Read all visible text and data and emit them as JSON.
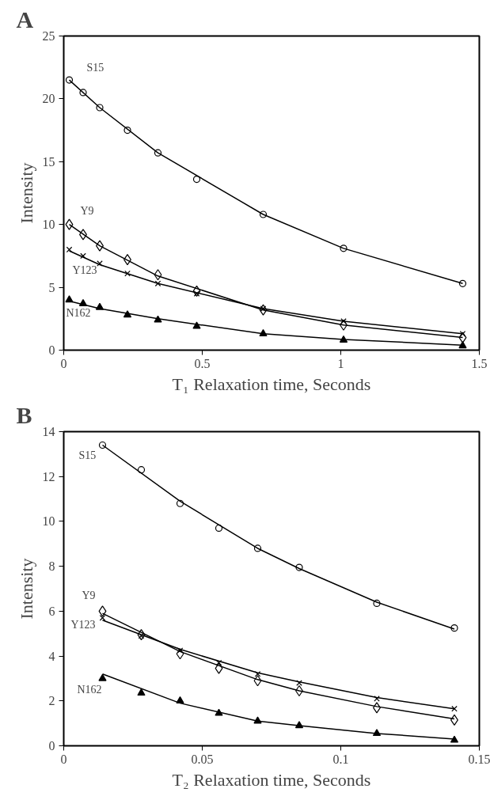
{
  "chart_data": [
    {
      "type": "scatter",
      "title": "A",
      "xlabel": "T₁ Relaxation time, Seconds",
      "ylabel": "Intensity",
      "xlim": [
        0,
        1.5
      ],
      "ylim": [
        0,
        25
      ],
      "xticks": [
        0,
        0.5,
        1,
        1.5
      ],
      "yticks": [
        0,
        5,
        10,
        15,
        20,
        25
      ],
      "grid": false,
      "x": [
        0.02,
        0.07,
        0.13,
        0.23,
        0.34,
        0.48,
        0.72,
        1.01,
        1.44
      ],
      "series": [
        {
          "name": "S15",
          "color": "#000000",
          "marker": "circle",
          "values": [
            21.5,
            20.5,
            19.3,
            17.5,
            15.7,
            13.6,
            10.8,
            8.1,
            5.3
          ]
        },
        {
          "name": "Y9",
          "color": "#000000",
          "marker": "diamond",
          "values": [
            10.0,
            9.2,
            8.3,
            7.2,
            6.0,
            4.7,
            3.2,
            2.0,
            1.0
          ]
        },
        {
          "name": "Y123",
          "color": "#000000",
          "marker": "cross",
          "values": [
            8.0,
            7.5,
            6.9,
            6.1,
            5.3,
            4.5,
            3.3,
            2.3,
            1.3
          ]
        },
        {
          "name": "N162",
          "color": "#000000",
          "marker": "triangle",
          "values": [
            4.0,
            3.7,
            3.4,
            2.8,
            2.4,
            1.9,
            1.3,
            0.8,
            0.35
          ]
        },
        {
          "type": "line",
          "color": "#000000",
          "x": [
            0.02,
            0.13,
            0.34,
            0.72,
            1.01,
            1.44
          ],
          "values": [
            21.5,
            19.3,
            15.7,
            10.8,
            8.1,
            5.3
          ]
        },
        {
          "type": "line",
          "color": "#000000",
          "x": [
            0.02,
            0.13,
            0.34,
            0.72,
            1.01,
            1.44
          ],
          "values": [
            10.0,
            8.3,
            5.9,
            3.2,
            2.0,
            1.0
          ]
        },
        {
          "type": "line",
          "color": "#000000",
          "x": [
            0.02,
            0.13,
            0.34,
            0.72,
            1.01,
            1.44
          ],
          "values": [
            7.9,
            6.8,
            5.3,
            3.3,
            2.3,
            1.3
          ]
        },
        {
          "type": "line",
          "color": "#000000",
          "x": [
            0.02,
            0.13,
            0.34,
            0.72,
            1.01,
            1.44
          ],
          "values": [
            3.9,
            3.3,
            2.5,
            1.3,
            0.85,
            0.4
          ]
        }
      ]
    },
    {
      "type": "scatter",
      "title": "B",
      "xlabel": "T₂ Relaxation time, Seconds",
      "ylabel": "Intensity",
      "xlim": [
        0,
        0.15
      ],
      "ylim": [
        0,
        14
      ],
      "xticks": [
        0,
        0.05,
        0.1,
        0.15
      ],
      "yticks": [
        0,
        2,
        4,
        6,
        8,
        10,
        12,
        14
      ],
      "grid": false,
      "x": [
        0.014,
        0.028,
        0.042,
        0.056,
        0.07,
        0.085,
        0.113,
        0.141
      ],
      "series": [
        {
          "name": "S15",
          "color": "#000000",
          "marker": "circle",
          "values": [
            13.4,
            12.3,
            10.8,
            9.7,
            8.8,
            7.95,
            6.35,
            5.25
          ]
        },
        {
          "name": "Y9",
          "color": "#000000",
          "marker": "diamond",
          "values": [
            6.0,
            4.95,
            4.1,
            3.45,
            2.9,
            2.45,
            1.7,
            1.15
          ]
        },
        {
          "name": "Y123",
          "color": "#000000",
          "marker": "cross",
          "values": [
            5.7,
            4.9,
            4.25,
            3.7,
            3.2,
            2.8,
            2.1,
            1.65
          ]
        },
        {
          "name": "N162",
          "color": "#000000",
          "marker": "triangle",
          "values": [
            3.0,
            2.35,
            2.0,
            1.45,
            1.1,
            0.9,
            0.55,
            0.25
          ]
        },
        {
          "type": "line",
          "color": "#000000",
          "x": [
            0.014,
            0.042,
            0.07,
            0.085,
            0.113,
            0.141
          ],
          "values": [
            13.4,
            10.9,
            8.8,
            7.9,
            6.4,
            5.2
          ]
        },
        {
          "type": "line",
          "color": "#000000",
          "x": [
            0.014,
            0.042,
            0.07,
            0.085,
            0.113,
            0.141
          ],
          "values": [
            5.9,
            4.2,
            2.95,
            2.45,
            1.75,
            1.2
          ]
        },
        {
          "type": "line",
          "color": "#000000",
          "x": [
            0.014,
            0.042,
            0.07,
            0.085,
            0.113,
            0.141
          ],
          "values": [
            5.6,
            4.3,
            3.25,
            2.85,
            2.15,
            1.65
          ]
        },
        {
          "type": "line",
          "color": "#000000",
          "x": [
            0.014,
            0.042,
            0.07,
            0.085,
            0.113,
            0.141
          ],
          "values": [
            3.2,
            1.9,
            1.1,
            0.9,
            0.55,
            0.3
          ]
        }
      ]
    }
  ]
}
